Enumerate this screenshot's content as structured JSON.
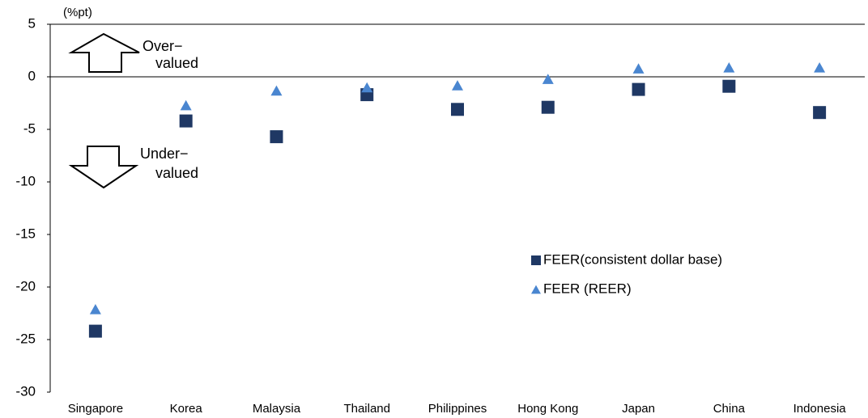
{
  "chart_data": {
    "type": "scatter",
    "y_axis_label": "(%pt)",
    "annotations": [
      "Over−",
      "valued",
      "Under−",
      "valued"
    ],
    "categories": [
      "Singapore",
      "Korea",
      "Malaysia",
      "Thailand",
      "Philippines",
      "Hong Kong",
      "Japan",
      "China",
      "Indonesia"
    ],
    "series": [
      {
        "name": "FEER(consistent dollar base)",
        "color": "#1f3864",
        "marker": "square",
        "values": [
          -24.2,
          -4.2,
          -5.7,
          -1.7,
          -3.1,
          -2.9,
          -1.2,
          -0.9,
          -3.4
        ]
      },
      {
        "name": "FEER (REER)",
        "color": "#4a86d0",
        "marker": "triangle",
        "values": [
          -22.1,
          -2.7,
          -1.3,
          -1.0,
          -0.8,
          -0.2,
          0.8,
          0.9,
          0.9
        ]
      }
    ],
    "ylim": [
      -30,
      5
    ],
    "yticks": [
      -30,
      -25,
      -20,
      -15,
      -10,
      -5,
      0,
      5
    ],
    "legend": "right"
  }
}
